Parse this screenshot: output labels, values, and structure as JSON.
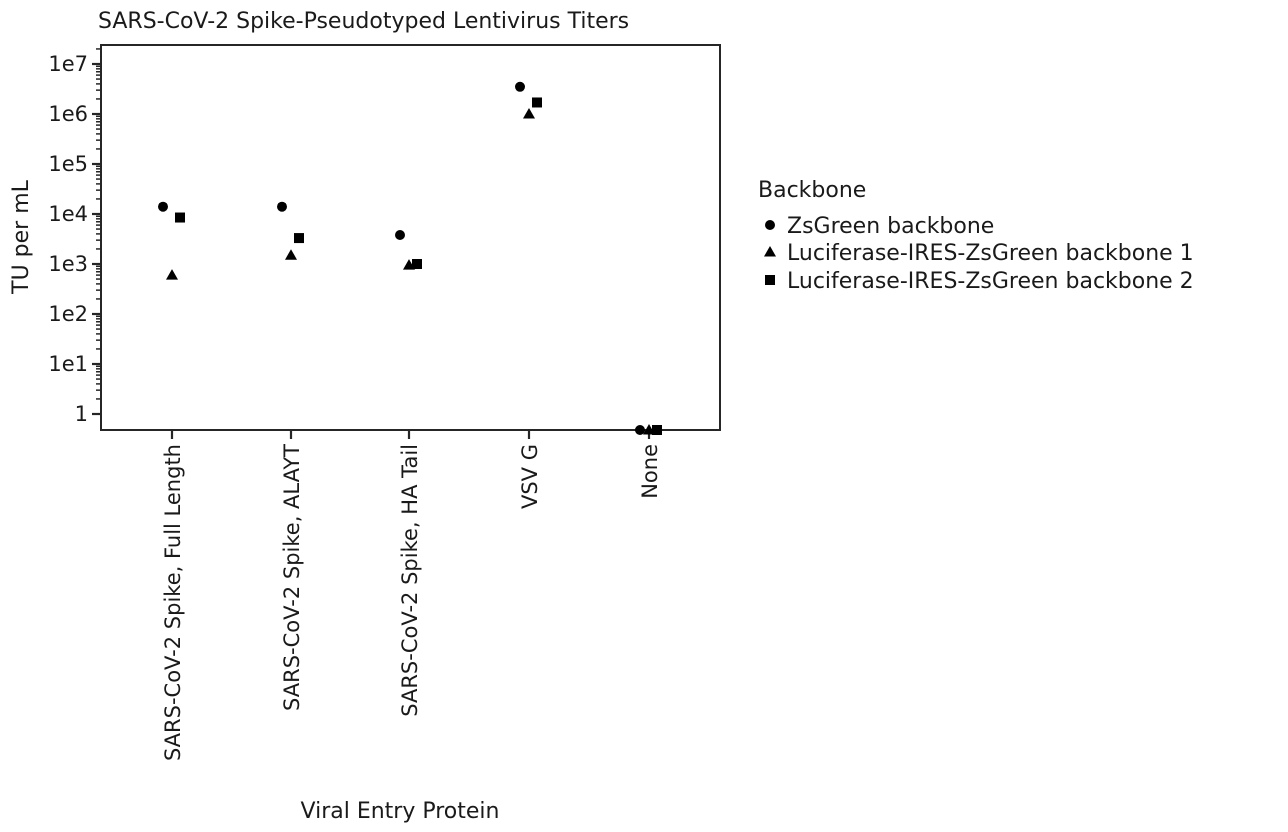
{
  "chart_data": {
    "type": "scatter",
    "title": "SARS-CoV-2 Spike-Pseudotyped Lentivirus Titers",
    "xlabel": "Viral Entry Protein",
    "ylabel": "TU per mL",
    "y_scale": "log",
    "ylim": [
      0.7,
      20000000
    ],
    "grid": false,
    "legend_position": "right",
    "categories": [
      "SARS-CoV-2 Spike, Full Length",
      "SARS-CoV-2 Spike, ALAYT",
      "SARS-CoV-2 Spike, HA Tail",
      "VSV G",
      "None"
    ],
    "y_ticks": [
      {
        "value": 1,
        "label": "1"
      },
      {
        "value": 10,
        "label": "1e1"
      },
      {
        "value": 100,
        "label": "1e2"
      },
      {
        "value": 1000,
        "label": "1e3"
      },
      {
        "value": 10000,
        "label": "1e4"
      },
      {
        "value": 100000,
        "label": "1e5"
      },
      {
        "value": 1000000,
        "label": "1e6"
      },
      {
        "value": 10000000,
        "label": "1e7"
      }
    ],
    "legend_title": "Backbone",
    "series": [
      {
        "name": "ZsGreen backbone",
        "marker": "circle",
        "values": [
          14000,
          14000,
          3800,
          3500000,
          null
        ]
      },
      {
        "name": "Luciferase-IRES-ZsGreen backbone 1",
        "marker": "triangle",
        "values": [
          600,
          1500,
          950,
          1000000,
          null
        ]
      },
      {
        "name": "Luciferase-IRES-ZsGreen backbone 2",
        "marker": "square",
        "values": [
          8500,
          3300,
          1000,
          1700000,
          null
        ]
      }
    ],
    "colors": {
      "marker": "#000000",
      "axis": "#262626",
      "text": "#1a1a1a"
    }
  }
}
